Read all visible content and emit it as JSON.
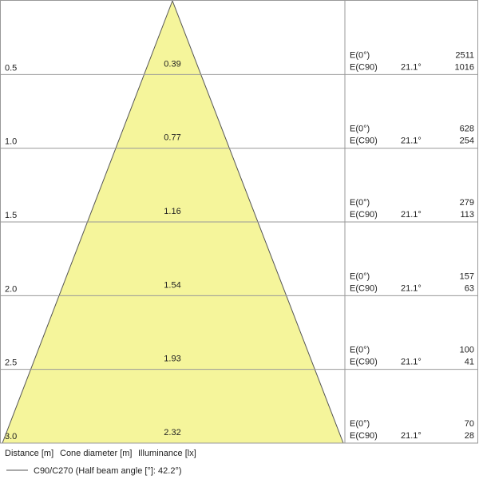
{
  "rows": [
    {
      "distance": "0.5",
      "diameter": "0.39",
      "e0_label": "E(0°)",
      "ec90_label": "E(C90)",
      "angle": "21.1°",
      "e0": "2511",
      "ec90": "1016"
    },
    {
      "distance": "1.0",
      "diameter": "0.77",
      "e0_label": "E(0°)",
      "ec90_label": "E(C90)",
      "angle": "21.1°",
      "e0": "628",
      "ec90": "254"
    },
    {
      "distance": "1.5",
      "diameter": "1.16",
      "e0_label": "E(0°)",
      "ec90_label": "E(C90)",
      "angle": "21.1°",
      "e0": "279",
      "ec90": "113"
    },
    {
      "distance": "2.0",
      "diameter": "1.54",
      "e0_label": "E(0°)",
      "ec90_label": "E(C90)",
      "angle": "21.1°",
      "e0": "157",
      "ec90": "63"
    },
    {
      "distance": "2.5",
      "diameter": "1.93",
      "e0_label": "E(0°)",
      "ec90_label": "E(C90)",
      "angle": "21.1°",
      "e0": "100",
      "ec90": "41"
    },
    {
      "distance": "3.0",
      "diameter": "2.32",
      "e0_label": "E(0°)",
      "ec90_label": "E(C90)",
      "angle": "21.1°",
      "e0": "70",
      "ec90": "28"
    }
  ],
  "footer": {
    "distance": "Distance [m]",
    "diameter": "Cone diameter [m]",
    "illuminance": "Illuminance [lx]"
  },
  "legend": "C90/C270 (Half beam angle [°]: 42.2°)"
}
